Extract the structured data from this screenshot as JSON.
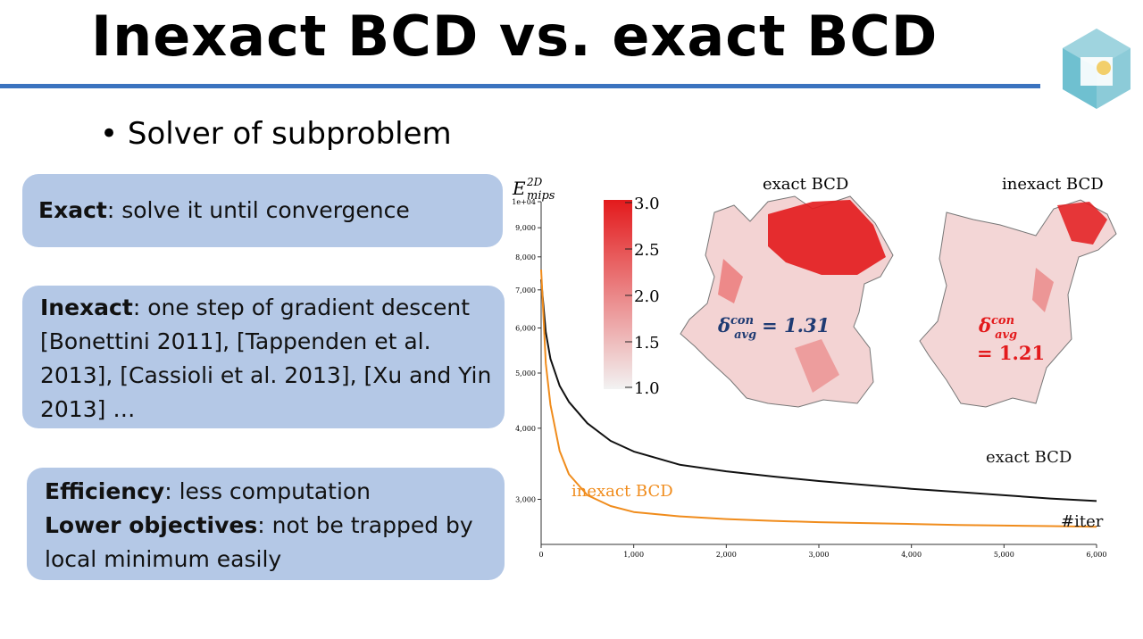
{
  "slide": {
    "title": "Inexact BCD vs. exact BCD",
    "bullet": "Solver of subproblem"
  },
  "boxes": {
    "exact": {
      "label": "Exact",
      "text": ": solve it until convergence"
    },
    "inexact": {
      "label": "Inexact",
      "text": ": one step of gradient descent [Bonettini 2011], [Tappenden et al. 2013], [Cassioli et al. 2013], [Xu and Yin 2013] …"
    },
    "benefits": {
      "efficiency_label": "Efficiency",
      "efficiency_text": ": less computation",
      "lower_label": "Lower objectives",
      "lower_text": ": not be trapped by local minimum easily"
    }
  },
  "colorbar": {
    "ticks": [
      "3.0",
      "2.5",
      "2.0",
      "1.5",
      "1.0"
    ],
    "colors": {
      "high": "#e31a1c",
      "low": "#f2f2f2"
    }
  },
  "meshes": {
    "exact": {
      "title": "exact BCD",
      "delta_symbol": "δ",
      "delta_sup": "con",
      "delta_sub": "avg",
      "delta_value": "= 1.31",
      "color": "#1f3b73"
    },
    "inexact": {
      "title": "inexact BCD",
      "delta_symbol": "δ",
      "delta_sup": "con",
      "delta_sub": "avg",
      "delta_value": "= 1.21",
      "color": "#e31a1c"
    }
  },
  "chart_data": {
    "type": "line",
    "ylabel_main": "E",
    "ylabel_sup": "2D",
    "ylabel_sub": "mips",
    "xlabel": "#iter",
    "y_scale": "log",
    "ylim": [
      2500,
      10000
    ],
    "xlim": [
      0,
      6000
    ],
    "x_ticks": [
      0,
      1000,
      2000,
      3000,
      4000,
      5000,
      6000
    ],
    "x_tick_labels": [
      "0",
      "1,000",
      "2,000",
      "3,000",
      "4,000",
      "5,000",
      "6,000"
    ],
    "y_ticks": [
      3000,
      4000,
      5000,
      6000,
      7000,
      8000,
      9000,
      10000
    ],
    "y_tick_labels": [
      "3,000",
      "4,000",
      "5,000",
      "6,000",
      "7,000",
      "8,000",
      "9,000",
      "1e+04"
    ],
    "series": [
      {
        "name": "exact BCD",
        "color": "#111111",
        "x": [
          0,
          50,
          100,
          200,
          300,
          500,
          750,
          1000,
          1500,
          2000,
          2500,
          3000,
          3500,
          4000,
          4500,
          5000,
          5500,
          6000
        ],
        "y": [
          7300,
          5900,
          5300,
          4750,
          4450,
          4080,
          3800,
          3640,
          3450,
          3360,
          3290,
          3230,
          3180,
          3130,
          3090,
          3050,
          3010,
          2980
        ]
      },
      {
        "name": "inexact BCD",
        "color": "#f08c1c",
        "x": [
          0,
          50,
          100,
          200,
          300,
          500,
          750,
          1000,
          1500,
          2000,
          2500,
          3000,
          3500,
          4000,
          4500,
          5000,
          5500,
          6000
        ],
        "y": [
          7600,
          5200,
          4400,
          3650,
          3320,
          3050,
          2920,
          2850,
          2800,
          2770,
          2750,
          2735,
          2725,
          2715,
          2705,
          2698,
          2692,
          2685
        ]
      }
    ]
  }
}
